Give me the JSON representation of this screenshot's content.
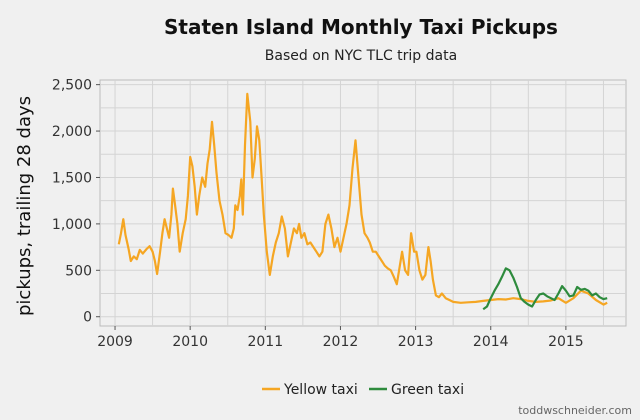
{
  "chart_data": {
    "type": "line",
    "title": "Staten Island Monthly Taxi Pickups",
    "subtitle": "Based on NYC TLC trip data",
    "xlabel": "",
    "ylabel": "pickups, trailing 28 days",
    "xlim": [
      2008.8,
      2015.8
    ],
    "ylim": [
      -100,
      2550
    ],
    "xticks": [
      2009,
      2010,
      2011,
      2012,
      2013,
      2014,
      2015
    ],
    "xtick_labels": [
      "2009",
      "2010",
      "2011",
      "2012",
      "2013",
      "2014",
      "2015"
    ],
    "yticks": [
      0,
      500,
      1000,
      1500,
      2000,
      2500
    ],
    "ytick_labels": [
      "0",
      "500",
      "1,000",
      "1,500",
      "2,000",
      "2,500"
    ],
    "grid": true,
    "legend_position": "bottom",
    "series": [
      {
        "name": "Yellow taxi",
        "color": "#f5a623",
        "points": [
          [
            2009.05,
            780
          ],
          [
            2009.08,
            900
          ],
          [
            2009.11,
            1050
          ],
          [
            2009.14,
            880
          ],
          [
            2009.18,
            730
          ],
          [
            2009.21,
            600
          ],
          [
            2009.25,
            650
          ],
          [
            2009.29,
            620
          ],
          [
            2009.33,
            720
          ],
          [
            2009.37,
            680
          ],
          [
            2009.42,
            730
          ],
          [
            2009.46,
            760
          ],
          [
            2009.5,
            700
          ],
          [
            2009.53,
            600
          ],
          [
            2009.56,
            460
          ],
          [
            2009.6,
            700
          ],
          [
            2009.63,
            900
          ],
          [
            2009.66,
            1050
          ],
          [
            2009.69,
            950
          ],
          [
            2009.72,
            850
          ],
          [
            2009.75,
            1100
          ],
          [
            2009.77,
            1380
          ],
          [
            2009.8,
            1200
          ],
          [
            2009.83,
            1000
          ],
          [
            2009.86,
            700
          ],
          [
            2009.9,
            900
          ],
          [
            2009.94,
            1050
          ],
          [
            2009.97,
            1300
          ],
          [
            2010.0,
            1720
          ],
          [
            2010.03,
            1620
          ],
          [
            2010.06,
            1400
          ],
          [
            2010.09,
            1100
          ],
          [
            2010.12,
            1300
          ],
          [
            2010.16,
            1500
          ],
          [
            2010.2,
            1400
          ],
          [
            2010.23,
            1650
          ],
          [
            2010.26,
            1800
          ],
          [
            2010.29,
            2100
          ],
          [
            2010.32,
            1850
          ],
          [
            2010.35,
            1550
          ],
          [
            2010.39,
            1250
          ],
          [
            2010.43,
            1100
          ],
          [
            2010.47,
            900
          ],
          [
            2010.51,
            880
          ],
          [
            2010.55,
            850
          ],
          [
            2010.58,
            950
          ],
          [
            2010.6,
            1200
          ],
          [
            2010.63,
            1150
          ],
          [
            2010.66,
            1300
          ],
          [
            2010.68,
            1480
          ],
          [
            2010.7,
            1100
          ],
          [
            2010.73,
            1850
          ],
          [
            2010.76,
            2400
          ],
          [
            2010.8,
            2100
          ],
          [
            2010.83,
            1500
          ],
          [
            2010.86,
            1700
          ],
          [
            2010.89,
            2050
          ],
          [
            2010.92,
            1900
          ],
          [
            2010.95,
            1500
          ],
          [
            2010.98,
            1100
          ],
          [
            2011.02,
            700
          ],
          [
            2011.06,
            450
          ],
          [
            2011.1,
            650
          ],
          [
            2011.14,
            800
          ],
          [
            2011.18,
            900
          ],
          [
            2011.22,
            1080
          ],
          [
            2011.26,
            950
          ],
          [
            2011.3,
            650
          ],
          [
            2011.34,
            800
          ],
          [
            2011.38,
            950
          ],
          [
            2011.42,
            900
          ],
          [
            2011.45,
            1000
          ],
          [
            2011.48,
            850
          ],
          [
            2011.52,
            900
          ],
          [
            2011.56,
            780
          ],
          [
            2011.6,
            800
          ],
          [
            2011.64,
            750
          ],
          [
            2011.68,
            700
          ],
          [
            2011.72,
            650
          ],
          [
            2011.76,
            700
          ],
          [
            2011.8,
            1000
          ],
          [
            2011.84,
            1100
          ],
          [
            2011.88,
            950
          ],
          [
            2011.92,
            750
          ],
          [
            2011.96,
            850
          ],
          [
            2012.0,
            700
          ],
          [
            2012.04,
            850
          ],
          [
            2012.08,
            1000
          ],
          [
            2012.12,
            1200
          ],
          [
            2012.16,
            1600
          ],
          [
            2012.2,
            1900
          ],
          [
            2012.24,
            1500
          ],
          [
            2012.28,
            1100
          ],
          [
            2012.32,
            900
          ],
          [
            2012.36,
            850
          ],
          [
            2012.39,
            800
          ],
          [
            2012.43,
            700
          ],
          [
            2012.47,
            700
          ],
          [
            2012.51,
            650
          ],
          [
            2012.55,
            600
          ],
          [
            2012.59,
            550
          ],
          [
            2012.63,
            520
          ],
          [
            2012.67,
            500
          ],
          [
            2012.71,
            430
          ],
          [
            2012.75,
            350
          ],
          [
            2012.78,
            500
          ],
          [
            2012.82,
            700
          ],
          [
            2012.86,
            500
          ],
          [
            2012.9,
            450
          ],
          [
            2012.94,
            900
          ],
          [
            2012.98,
            700
          ],
          [
            2013.01,
            700
          ],
          [
            2013.05,
            500
          ],
          [
            2013.09,
            400
          ],
          [
            2013.13,
            450
          ],
          [
            2013.17,
            750
          ],
          [
            2013.2,
            600
          ],
          [
            2013.23,
            400
          ],
          [
            2013.27,
            230
          ],
          [
            2013.31,
            210
          ],
          [
            2013.35,
            250
          ],
          [
            2013.4,
            200
          ],
          [
            2013.45,
            180
          ],
          [
            2013.5,
            160
          ],
          [
            2013.6,
            150
          ],
          [
            2013.7,
            155
          ],
          [
            2013.8,
            160
          ],
          [
            2013.9,
            170
          ],
          [
            2014.0,
            180
          ],
          [
            2014.1,
            190
          ],
          [
            2014.2,
            185
          ],
          [
            2014.3,
            200
          ],
          [
            2014.4,
            190
          ],
          [
            2014.5,
            170
          ],
          [
            2014.6,
            160
          ],
          [
            2014.7,
            165
          ],
          [
            2014.8,
            175
          ],
          [
            2014.9,
            200
          ],
          [
            2015.0,
            150
          ],
          [
            2015.1,
            200
          ],
          [
            2015.2,
            280
          ],
          [
            2015.3,
            250
          ],
          [
            2015.4,
            180
          ],
          [
            2015.5,
            130
          ],
          [
            2015.55,
            150
          ]
        ]
      },
      {
        "name": "Green taxi",
        "color": "#2e8b3d",
        "points": [
          [
            2013.9,
            80
          ],
          [
            2013.95,
            110
          ],
          [
            2014.0,
            200
          ],
          [
            2014.05,
            280
          ],
          [
            2014.1,
            350
          ],
          [
            2014.15,
            430
          ],
          [
            2014.2,
            520
          ],
          [
            2014.25,
            500
          ],
          [
            2014.3,
            420
          ],
          [
            2014.35,
            320
          ],
          [
            2014.4,
            200
          ],
          [
            2014.45,
            160
          ],
          [
            2014.5,
            130
          ],
          [
            2014.55,
            110
          ],
          [
            2014.6,
            180
          ],
          [
            2014.65,
            240
          ],
          [
            2014.7,
            250
          ],
          [
            2014.75,
            220
          ],
          [
            2014.8,
            200
          ],
          [
            2014.85,
            180
          ],
          [
            2014.9,
            250
          ],
          [
            2014.95,
            330
          ],
          [
            2015.0,
            280
          ],
          [
            2015.05,
            220
          ],
          [
            2015.1,
            230
          ],
          [
            2015.15,
            320
          ],
          [
            2015.2,
            290
          ],
          [
            2015.25,
            300
          ],
          [
            2015.3,
            280
          ],
          [
            2015.35,
            230
          ],
          [
            2015.4,
            250
          ],
          [
            2015.45,
            210
          ],
          [
            2015.5,
            190
          ],
          [
            2015.55,
            200
          ]
        ]
      }
    ],
    "credit": "toddwschneider.com"
  }
}
